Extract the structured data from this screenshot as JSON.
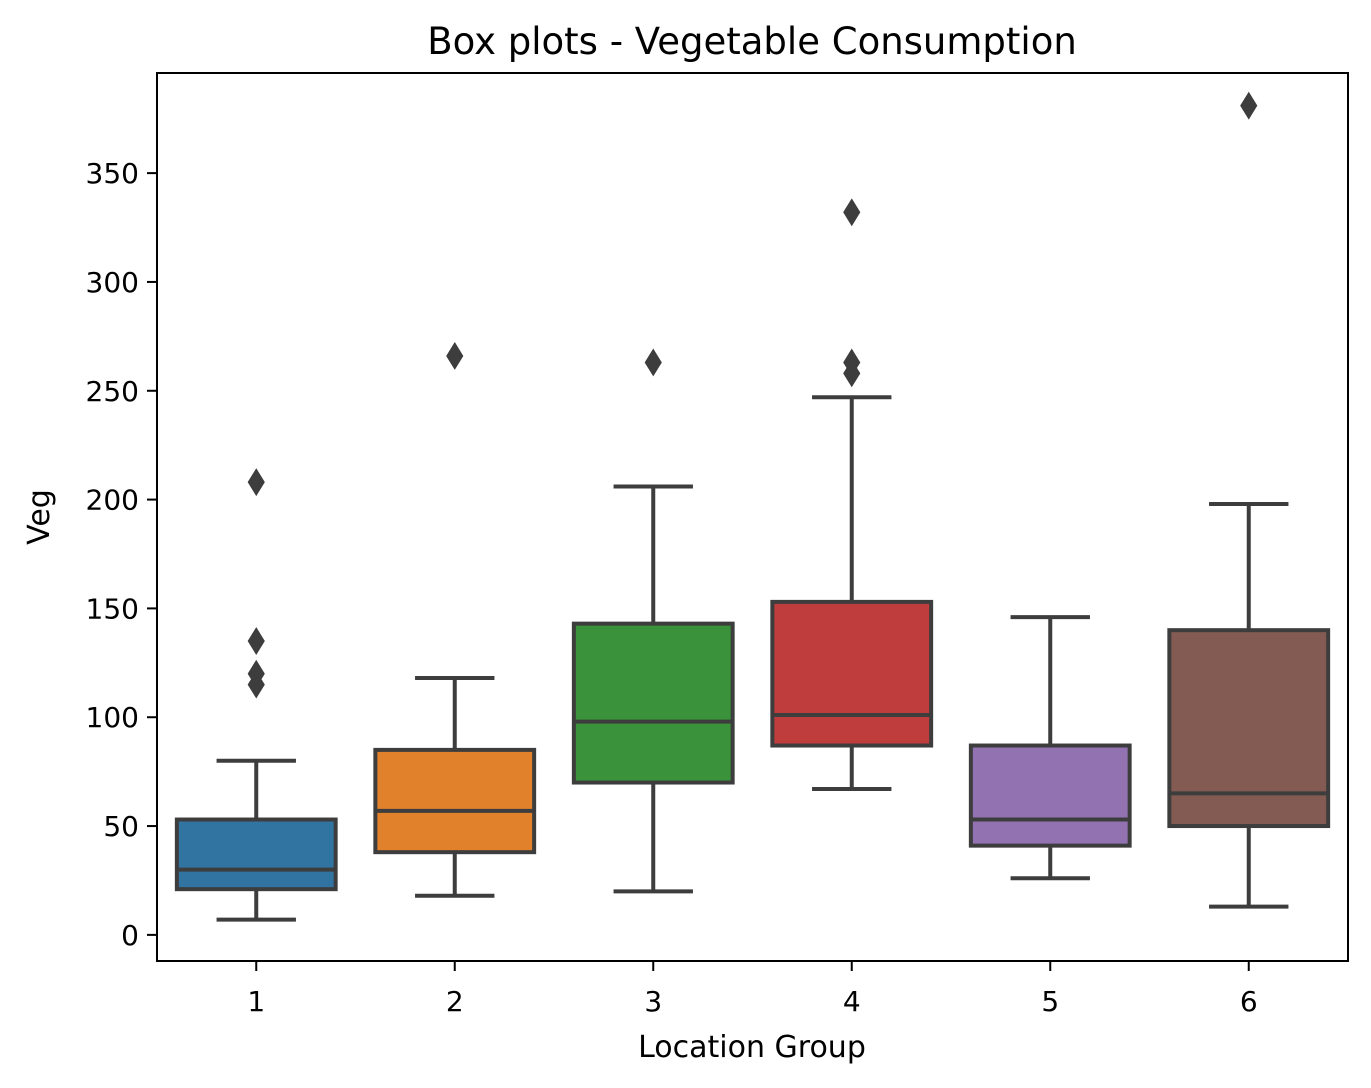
{
  "chart_data": {
    "type": "box",
    "title": "Box plots - Vegetable Consumption",
    "xlabel": "Location Group",
    "ylabel": "Veg",
    "ylim": [
      -12,
      396
    ],
    "yticks": [
      0,
      50,
      100,
      150,
      200,
      250,
      300,
      350
    ],
    "grid": false,
    "categories": [
      "1",
      "2",
      "3",
      "4",
      "5",
      "6"
    ],
    "colors": [
      "#3274a1",
      "#e1812c",
      "#3a923a",
      "#c03d3e",
      "#9372b2",
      "#845b53"
    ],
    "outline_color": "#3d3d3d",
    "boxes": [
      {
        "whisker_low": 7,
        "q1": 21,
        "median": 30,
        "q3": 53,
        "whisker_high": 80,
        "outliers": [
          115,
          120,
          135,
          208
        ]
      },
      {
        "whisker_low": 18,
        "q1": 38,
        "median": 57,
        "q3": 85,
        "whisker_high": 118,
        "outliers": [
          266
        ]
      },
      {
        "whisker_low": 20,
        "q1": 70,
        "median": 98,
        "q3": 143,
        "whisker_high": 206,
        "outliers": [
          263
        ]
      },
      {
        "whisker_low": 67,
        "q1": 87,
        "median": 101,
        "q3": 153,
        "whisker_high": 247,
        "outliers": [
          258,
          263,
          332
        ]
      },
      {
        "whisker_low": 26,
        "q1": 41,
        "median": 53,
        "q3": 87,
        "whisker_high": 146,
        "outliers": []
      },
      {
        "whisker_low": 13,
        "q1": 50,
        "median": 65,
        "q3": 140,
        "whisker_high": 198,
        "outliers": [
          381
        ]
      }
    ]
  }
}
